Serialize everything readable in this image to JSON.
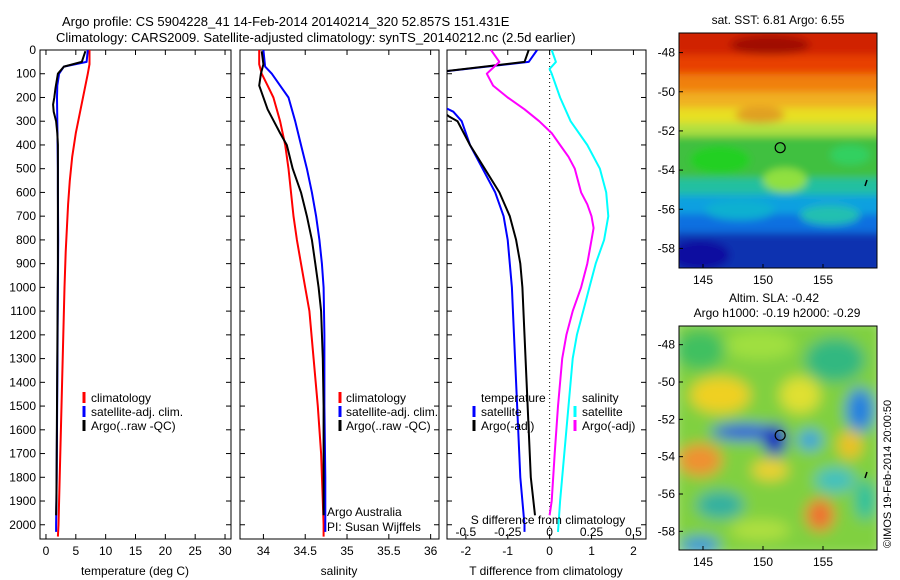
{
  "header": {
    "line1": "Argo profile: CS 5904228_41 14-Feb-2014 20140214_320 52.857S 151.431E",
    "line2": "Climatology: CARS2009. Satellite-adjusted climatology: synTS_20140212.nc (2.5d earlier)"
  },
  "colors": {
    "climatology": "#ff0000",
    "satellite": "#0000ff",
    "argo": "#000000",
    "sal_satellite": "#00ffff",
    "sal_argo": "#ff00ff"
  },
  "chart_data": [
    {
      "type": "line",
      "id": "temperature",
      "xlabel": "temperature (deg C)",
      "ylabel": "",
      "xlim": [
        -1,
        31
      ],
      "ylim": [
        2060,
        0
      ],
      "xticks": [
        0,
        5,
        10,
        15,
        20,
        25,
        30
      ],
      "yticks": [
        0,
        100,
        200,
        300,
        400,
        500,
        600,
        700,
        800,
        900,
        1000,
        1100,
        1200,
        1300,
        1400,
        1500,
        1600,
        1700,
        1800,
        1900,
        2000
      ],
      "legend": [
        "climatology",
        "satellite-adj. clim.",
        "Argo(..raw -QC)"
      ],
      "series": [
        {
          "name": "climatology",
          "color": "#ff0000",
          "points": [
            [
              7.3,
              0
            ],
            [
              7.3,
              60
            ],
            [
              7.0,
              100
            ],
            [
              6.6,
              150
            ],
            [
              5.8,
              250
            ],
            [
              5.0,
              350
            ],
            [
              4.4,
              450
            ],
            [
              4.0,
              550
            ],
            [
              3.7,
              650
            ],
            [
              3.5,
              750
            ],
            [
              3.3,
              850
            ],
            [
              3.1,
              1000
            ],
            [
              2.9,
              1200
            ],
            [
              2.7,
              1400
            ],
            [
              2.5,
              1600
            ],
            [
              2.3,
              1800
            ],
            [
              2.1,
              2000
            ],
            [
              2.0,
              2050
            ]
          ]
        },
        {
          "name": "satellite-adj. clim.",
          "color": "#0000ff",
          "points": [
            [
              7.0,
              0
            ],
            [
              6.8,
              50
            ],
            [
              3.0,
              70
            ],
            [
              2.2,
              100
            ],
            [
              1.9,
              150
            ],
            [
              1.85,
              200
            ],
            [
              1.9,
              300
            ],
            [
              1.95,
              400
            ],
            [
              2.0,
              500
            ],
            [
              2.0,
              600
            ],
            [
              2.05,
              800
            ],
            [
              2.0,
              1000
            ],
            [
              1.95,
              1200
            ],
            [
              1.9,
              1400
            ],
            [
              1.85,
              1600
            ],
            [
              1.8,
              1800
            ],
            [
              1.7,
              2000
            ],
            [
              1.7,
              2030
            ]
          ]
        },
        {
          "name": "Argo(..raw -QC)",
          "color": "#000000",
          "points": [
            [
              6.6,
              5
            ],
            [
              6.0,
              50
            ],
            [
              3.0,
              70
            ],
            [
              2.0,
              100
            ],
            [
              1.6,
              160
            ],
            [
              1.4,
              200
            ],
            [
              1.2,
              230
            ],
            [
              1.3,
              260
            ],
            [
              1.7,
              300
            ],
            [
              1.9,
              350
            ],
            [
              2.0,
              400
            ],
            [
              2.0,
              500
            ],
            [
              2.0,
              700
            ],
            [
              2.0,
              900
            ],
            [
              1.95,
              1100
            ],
            [
              1.9,
              1300
            ],
            [
              1.85,
              1500
            ],
            [
              1.8,
              1700
            ],
            [
              1.75,
              1900
            ],
            [
              1.7,
              1960
            ]
          ]
        }
      ]
    },
    {
      "type": "line",
      "id": "salinity",
      "xlabel": "salinity",
      "ylabel": "",
      "xlim": [
        33.72,
        36.1
      ],
      "ylim": [
        2060,
        0
      ],
      "xticks": [
        34,
        34.5,
        35,
        35.5,
        36
      ],
      "xticklabels": [
        "34",
        "34.5",
        "35",
        "35.5",
        "36"
      ],
      "legend": [
        "climatology",
        "satellite-adj. clim.",
        "Argo(..raw -QC)"
      ],
      "annotation": [
        "Argo Australia",
        "PI: Susan Wijffels"
      ],
      "series": [
        {
          "name": "climatology",
          "color": "#ff0000",
          "points": [
            [
              33.95,
              0
            ],
            [
              33.95,
              60
            ],
            [
              33.98,
              100
            ],
            [
              34.05,
              150
            ],
            [
              34.12,
              200
            ],
            [
              34.2,
              300
            ],
            [
              34.26,
              400
            ],
            [
              34.3,
              500
            ],
            [
              34.33,
              600
            ],
            [
              34.36,
              700
            ],
            [
              34.4,
              800
            ],
            [
              34.45,
              900
            ],
            [
              34.5,
              1000
            ],
            [
              34.55,
              1100
            ],
            [
              34.6,
              1300
            ],
            [
              34.65,
              1500
            ],
            [
              34.69,
              1700
            ],
            [
              34.71,
              1900
            ],
            [
              34.72,
              2000
            ],
            [
              34.72,
              2050
            ]
          ]
        },
        {
          "name": "satellite-adj. clim.",
          "color": "#0000ff",
          "points": [
            [
              34.0,
              0
            ],
            [
              34.02,
              70
            ],
            [
              34.1,
              100
            ],
            [
              34.2,
              150
            ],
            [
              34.3,
              200
            ],
            [
              34.38,
              300
            ],
            [
              34.45,
              400
            ],
            [
              34.52,
              500
            ],
            [
              34.58,
              600
            ],
            [
              34.63,
              700
            ],
            [
              34.67,
              800
            ],
            [
              34.7,
              900
            ],
            [
              34.72,
              1000
            ],
            [
              34.73,
              1200
            ],
            [
              34.73,
              1500
            ],
            [
              34.74,
              1800
            ],
            [
              34.74,
              2030
            ]
          ]
        },
        {
          "name": "Argo(..raw -QC)",
          "color": "#000000",
          "points": [
            [
              33.98,
              5
            ],
            [
              34.0,
              60
            ],
            [
              33.97,
              100
            ],
            [
              33.95,
              150
            ],
            [
              34.05,
              250
            ],
            [
              34.2,
              350
            ],
            [
              34.28,
              400
            ],
            [
              34.35,
              500
            ],
            [
              34.45,
              600
            ],
            [
              34.52,
              700
            ],
            [
              34.58,
              800
            ],
            [
              34.62,
              900
            ],
            [
              34.66,
              1000
            ],
            [
              34.69,
              1100
            ],
            [
              34.71,
              1300
            ],
            [
              34.72,
              1500
            ],
            [
              34.72,
              1700
            ],
            [
              34.72,
              1960
            ]
          ]
        }
      ]
    },
    {
      "type": "line",
      "id": "difference",
      "xlabel": "T difference from climatology",
      "x2label": "S difference from climatology",
      "xlim": [
        -2.45,
        2.3
      ],
      "ylim": [
        2060,
        0
      ],
      "xticks": [
        -2,
        -1,
        0,
        1,
        2
      ],
      "x2ticklabels": [
        "-0.5",
        "-0.25",
        "0",
        "0.25",
        "0.5"
      ],
      "x2tickpos": [
        -2,
        -1,
        0,
        1,
        2
      ],
      "zero_line": "dotted",
      "legend_left_title": "temperature",
      "legend_right_title": "salinity",
      "legend_left": [
        "satellite",
        "Argo(-adj)"
      ],
      "legend_right": [
        "satellite",
        "Argo(-adj)"
      ],
      "series": [
        {
          "name": "temperature satellite",
          "color": "#0000ff",
          "points": [
            [
              -0.3,
              0
            ],
            [
              -0.5,
              50
            ],
            [
              -3.0,
              100
            ],
            [
              -3.0,
              200
            ],
            [
              -2.3,
              260
            ],
            [
              -2.1,
              300
            ],
            [
              -1.9,
              400
            ],
            [
              -1.6,
              500
            ],
            [
              -1.3,
              600
            ],
            [
              -1.1,
              700
            ],
            [
              -1.0,
              800
            ],
            [
              -0.95,
              900
            ],
            [
              -0.9,
              1000
            ],
            [
              -0.85,
              1200
            ],
            [
              -0.8,
              1400
            ],
            [
              -0.75,
              1600
            ],
            [
              -0.7,
              1800
            ],
            [
              -0.6,
              2000
            ],
            [
              -0.6,
              2030
            ]
          ]
        },
        {
          "name": "temperature Argo(-adj)",
          "color": "#000000",
          "points": [
            [
              -0.5,
              0
            ],
            [
              -0.6,
              50
            ],
            [
              -3.0,
              100
            ],
            [
              -3.0,
              200
            ],
            [
              -2.4,
              280
            ],
            [
              -2.2,
              300
            ],
            [
              -1.9,
              400
            ],
            [
              -1.55,
              500
            ],
            [
              -1.2,
              600
            ],
            [
              -0.95,
              700
            ],
            [
              -0.8,
              800
            ],
            [
              -0.7,
              900
            ],
            [
              -0.65,
              1000
            ],
            [
              -0.6,
              1200
            ],
            [
              -0.55,
              1400
            ],
            [
              -0.5,
              1600
            ],
            [
              -0.45,
              1800
            ],
            [
              -0.35,
              1960
            ]
          ]
        },
        {
          "name": "salinity satellite",
          "color": "#00ffff",
          "points": [
            [
              0.05,
              0
            ],
            [
              0.15,
              50
            ],
            [
              0.0,
              80
            ],
            [
              0.05,
              100
            ],
            [
              0.25,
              200
            ],
            [
              0.5,
              300
            ],
            [
              0.9,
              400
            ],
            [
              1.2,
              500
            ],
            [
              1.35,
              600
            ],
            [
              1.4,
              700
            ],
            [
              1.3,
              800
            ],
            [
              1.1,
              900
            ],
            [
              0.95,
              1000
            ],
            [
              0.8,
              1100
            ],
            [
              0.65,
              1200
            ],
            [
              0.55,
              1300
            ],
            [
              0.45,
              1500
            ],
            [
              0.35,
              1700
            ],
            [
              0.25,
              1900
            ],
            [
              0.2,
              2030
            ]
          ]
        },
        {
          "name": "salinity Argo(-adj)",
          "color": "#ff00ff",
          "points": [
            [
              -1.4,
              0
            ],
            [
              -1.2,
              50
            ],
            [
              -1.5,
              100
            ],
            [
              -1.35,
              150
            ],
            [
              -1.0,
              200
            ],
            [
              -0.6,
              250
            ],
            [
              -0.25,
              300
            ],
            [
              0.05,
              350
            ],
            [
              0.25,
              400
            ],
            [
              0.45,
              450
            ],
            [
              0.6,
              500
            ],
            [
              0.75,
              600
            ],
            [
              0.9,
              650
            ],
            [
              1.0,
              700
            ],
            [
              1.05,
              750
            ],
            [
              1.0,
              800
            ],
            [
              0.9,
              900
            ],
            [
              0.75,
              1000
            ],
            [
              0.55,
              1100
            ],
            [
              0.4,
              1200
            ],
            [
              0.3,
              1300
            ],
            [
              0.2,
              1500
            ],
            [
              0.12,
              1700
            ],
            [
              0.05,
              1900
            ],
            [
              0.0,
              1960
            ]
          ]
        }
      ]
    },
    {
      "type": "heatmap",
      "id": "sst_map",
      "title": "sat. SST: 6.81  Argo: 6.55",
      "xticks": [
        145,
        150,
        155
      ],
      "yticks": [
        -48,
        -50,
        -52,
        -54,
        -56,
        -58
      ],
      "xlim": [
        143,
        159.5
      ],
      "ylim": [
        -59,
        -47
      ],
      "marker": [
        151.431,
        -52.857
      ]
    },
    {
      "type": "heatmap",
      "id": "sla_map",
      "title": "Altim. SLA: -0.42",
      "subtitle": "Argo h1000: -0.19 h2000: -0.29",
      "xticks": [
        145,
        150,
        155
      ],
      "yticks": [
        -48,
        -50,
        -52,
        -54,
        -56,
        -58
      ],
      "xlim": [
        143,
        159.5
      ],
      "ylim": [
        -59,
        -47
      ],
      "marker": [
        151.431,
        -52.857
      ]
    }
  ],
  "footer_side": "©IMOS 19-Feb-2014 20:00:50"
}
